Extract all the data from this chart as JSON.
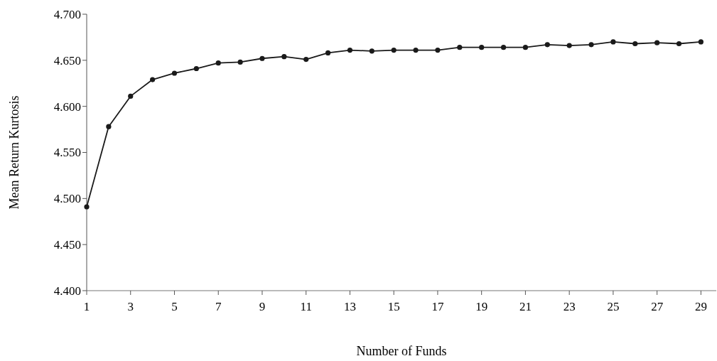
{
  "chart_data": {
    "type": "line",
    "xlabel": "Number of Funds",
    "ylabel": "Mean Return Kurtosis",
    "x": [
      1,
      2,
      3,
      4,
      5,
      6,
      7,
      8,
      9,
      10,
      11,
      12,
      13,
      14,
      15,
      16,
      17,
      18,
      19,
      20,
      21,
      22,
      23,
      24,
      25,
      26,
      27,
      28,
      29
    ],
    "series": [
      {
        "color": "#1a1a1a",
        "values": [
          4.491,
          4.578,
          4.611,
          4.629,
          4.636,
          4.641,
          4.647,
          4.648,
          4.652,
          4.654,
          4.651,
          4.658,
          4.661,
          4.66,
          4.661,
          4.661,
          4.661,
          4.664,
          4.664,
          4.664,
          4.664,
          4.667,
          4.666,
          4.667,
          4.67,
          4.668,
          4.669,
          4.668,
          4.67
        ]
      }
    ],
    "xlim": [
      1,
      29.7
    ],
    "xticks": [
      1,
      3,
      5,
      7,
      9,
      11,
      13,
      15,
      17,
      19,
      21,
      23,
      25,
      27,
      29
    ],
    "ylim": [
      4.4,
      4.7
    ],
    "yticks": [
      {
        "value": 4.4,
        "label": "4.400"
      },
      {
        "value": 4.45,
        "label": "4.450"
      },
      {
        "value": 4.5,
        "label": "4.500"
      },
      {
        "value": 4.55,
        "label": "4.550"
      },
      {
        "value": 4.6,
        "label": "4.600"
      },
      {
        "value": 4.65,
        "label": "4.650"
      },
      {
        "value": 4.7,
        "label": "4.700"
      }
    ],
    "grid": false,
    "marker": "circle",
    "line_style": "solid"
  }
}
